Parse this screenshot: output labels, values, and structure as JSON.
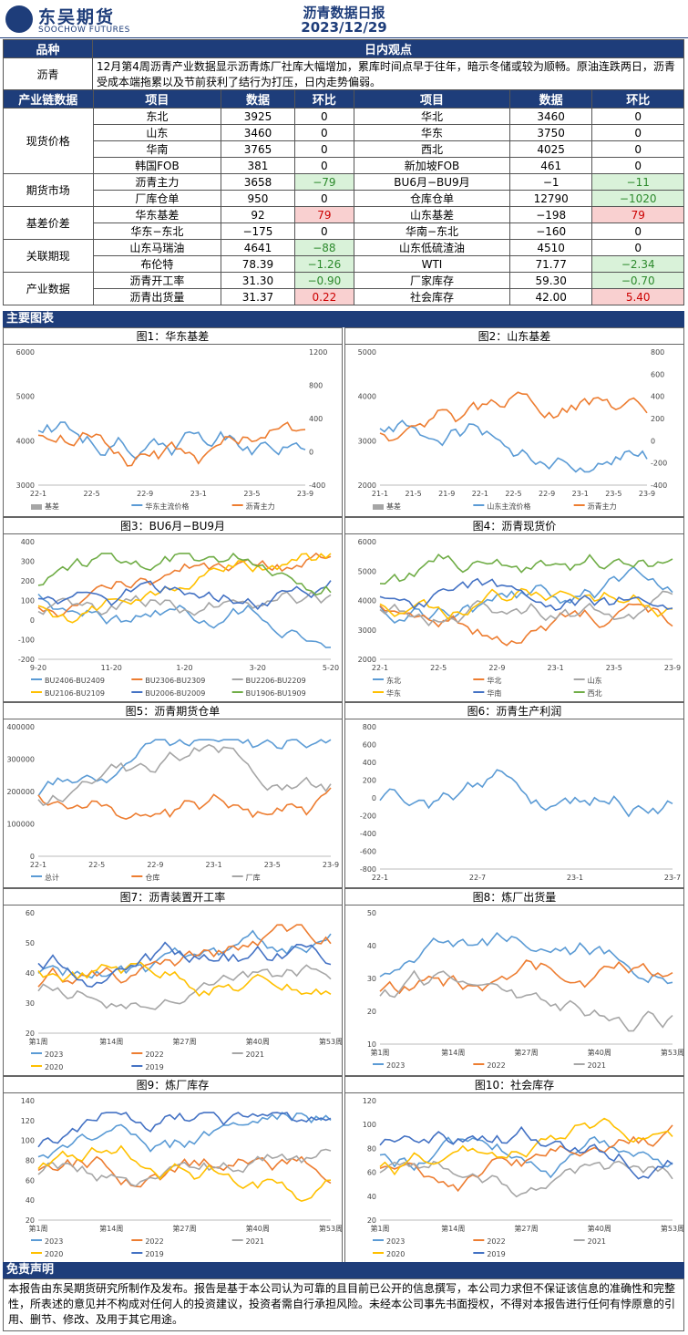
{
  "header": {
    "logo_cn": "东吴期货",
    "logo_en": "SOOCHOW FUTURES",
    "title": "沥青数据日报",
    "date": "2023/12/29"
  },
  "view": {
    "col1": "品种",
    "col2": "日内观点",
    "product": "沥青",
    "text": "12月第4周沥青产业数据显示沥青炼厂社库大幅增加，累库时间点早于往年，暗示冬储或较为顺畅。原油连跌两日，沥青受成本端拖累以及节前获利了结行为打压，日内走势偏弱。"
  },
  "table": {
    "headers": [
      "产业链数据",
      "项目",
      "数据",
      "环比",
      "项目",
      "数据",
      "环比"
    ],
    "groups": [
      {
        "name": "现货价格",
        "rows": [
          [
            "东北",
            "3925",
            "0",
            "华北",
            "3460",
            "0"
          ],
          [
            "山东",
            "3460",
            "0",
            "华东",
            "3750",
            "0"
          ],
          [
            "华南",
            "3765",
            "0",
            "西北",
            "4025",
            "0"
          ],
          [
            "韩国FOB",
            "381",
            "0",
            "新加坡FOB",
            "461",
            "0"
          ]
        ]
      },
      {
        "name": "期货市场",
        "rows": [
          [
            "沥青主力",
            "3658",
            "−79",
            "BU6月−BU9月",
            "−1",
            "−11"
          ],
          [
            "厂库仓单",
            "950",
            "0",
            "仓库仓单",
            "12790",
            "−1020"
          ]
        ]
      },
      {
        "name": "基差价差",
        "rows": [
          [
            "华东基差",
            "92",
            "79",
            "山东基差",
            "−198",
            "79"
          ],
          [
            "华东−东北",
            "−175",
            "0",
            "华南−东北",
            "−160",
            "0"
          ]
        ]
      },
      {
        "name": "关联期现",
        "rows": [
          [
            "山东马瑞油",
            "4641",
            "−88",
            "山东低硫渣油",
            "4510",
            "0"
          ],
          [
            "布伦特",
            "78.39",
            "−1.26",
            "WTI",
            "71.77",
            "−2.34"
          ]
        ]
      },
      {
        "name": "产业数据",
        "rows": [
          [
            "沥青开工率",
            "31.30",
            "−0.90",
            "厂家库存",
            "59.30",
            "−0.70"
          ],
          [
            "沥青出货量",
            "31.37",
            "0.22",
            "社会库存",
            "42.00",
            "5.40"
          ]
        ]
      }
    ]
  },
  "section_title": "主要图表",
  "charts": [
    {
      "title": "图1：华东基差",
      "yl": [
        "6000",
        "5000",
        "4000",
        "3000"
      ],
      "yr": [
        "1200",
        "800",
        "400",
        "0",
        "-400"
      ],
      "x": [
        "22-1",
        "22-5",
        "22-9",
        "23-1",
        "23-5",
        "23-9"
      ],
      "legend": [
        "基差",
        "华东主流价格",
        "沥青主力"
      ],
      "colors": [
        "#a6a6a6",
        "#5b9bd5",
        "#ed7d31"
      ]
    },
    {
      "title": "图2：山东基差",
      "yl": [
        "5000",
        "4000",
        "3000",
        "2000"
      ],
      "yr": [
        "800",
        "600",
        "400",
        "200",
        "0",
        "-200",
        "-400"
      ],
      "x": [
        "21-1",
        "21-5",
        "21-9",
        "22-1",
        "22-5",
        "22-9",
        "23-1",
        "23-5",
        "23-9"
      ],
      "legend": [
        "基差",
        "山东主流价格",
        "沥青主力"
      ],
      "colors": [
        "#a6a6a6",
        "#5b9bd5",
        "#ed7d31"
      ]
    },
    {
      "title": "图3：BU6月−BU9月",
      "yl": [
        "400",
        "300",
        "200",
        "100",
        "0",
        "-100",
        "-200"
      ],
      "x": [
        "9-20",
        "11-20",
        "1-20",
        "3-20",
        "5-20"
      ],
      "legend": [
        "BU2406-BU2409",
        "BU2306-BU2309",
        "BU2206-BU2209",
        "BU2106-BU2109",
        "BU2006-BU2009",
        "BU1906-BU1909"
      ],
      "colors": [
        "#5b9bd5",
        "#ed7d31",
        "#a6a6a6",
        "#ffc000",
        "#4472c4",
        "#70ad47"
      ]
    },
    {
      "title": "图4：沥青现货价",
      "yl": [
        "6000",
        "5000",
        "4000",
        "3000",
        "2000"
      ],
      "x": [
        "22-1",
        "22-5",
        "22-9",
        "23-1",
        "23-5",
        "23-9"
      ],
      "legend": [
        "东北",
        "华北",
        "山东",
        "华东",
        "华南",
        "西北"
      ],
      "colors": [
        "#5b9bd5",
        "#ed7d31",
        "#a6a6a6",
        "#ffc000",
        "#4472c4",
        "#70ad47"
      ]
    },
    {
      "title": "图5：沥青期货仓单",
      "yl": [
        "400000",
        "300000",
        "200000",
        "100000",
        "0"
      ],
      "x": [
        "22-1",
        "22-5",
        "22-9",
        "23-1",
        "23-5",
        "23-9"
      ],
      "legend": [
        "总计",
        "仓库",
        "厂库"
      ],
      "colors": [
        "#5b9bd5",
        "#ed7d31",
        "#a6a6a6"
      ]
    },
    {
      "title": "图6：沥青生产利润",
      "yl": [
        "800",
        "600",
        "400",
        "200",
        "0",
        "-200",
        "-400",
        "-600",
        "-800"
      ],
      "x": [
        "22-1",
        "22-7",
        "23-1",
        "23-7"
      ],
      "legend": [],
      "colors": [
        "#5b9bd5"
      ]
    },
    {
      "title": "图7：沥青装置开工率",
      "yl": [
        "60",
        "50",
        "40",
        "30",
        "20"
      ],
      "x": [
        "第1周",
        "第14周",
        "第27周",
        "第40周",
        "第53周"
      ],
      "legend": [
        "2023",
        "2022",
        "2021",
        "2020",
        "2019"
      ],
      "colors": [
        "#5b9bd5",
        "#ed7d31",
        "#a6a6a6",
        "#ffc000",
        "#4472c4"
      ]
    },
    {
      "title": "图8：炼厂出货量",
      "yl": [
        "50",
        "40",
        "30",
        "20",
        "10"
      ],
      "x": [
        "第1周",
        "第14周",
        "第27周",
        "第40周",
        "第53周"
      ],
      "legend": [
        "2023",
        "2022",
        "2021"
      ],
      "colors": [
        "#5b9bd5",
        "#ed7d31",
        "#a6a6a6"
      ]
    },
    {
      "title": "图9：炼厂库存",
      "yl": [
        "140",
        "120",
        "100",
        "80",
        "60",
        "40",
        "20"
      ],
      "x": [
        "第1周",
        "第14周",
        "第27周",
        "第40周",
        "第53周"
      ],
      "legend": [
        "2023",
        "2022",
        "2021",
        "2020",
        "2019"
      ],
      "colors": [
        "#5b9bd5",
        "#ed7d31",
        "#a6a6a6",
        "#ffc000",
        "#4472c4"
      ]
    },
    {
      "title": "图10：社会库存",
      "yl": [
        "120",
        "100",
        "80",
        "60",
        "40",
        "20"
      ],
      "x": [
        "第1周",
        "第14周",
        "第27周",
        "第40周",
        "第53周"
      ],
      "legend": [
        "2023",
        "2022",
        "2021",
        "2020",
        "2019"
      ],
      "colors": [
        "#5b9bd5",
        "#ed7d31",
        "#a6a6a6",
        "#ffc000",
        "#4472c4"
      ]
    }
  ],
  "disclaimer": {
    "title": "免责声明",
    "text": "本报告由东吴期货研究所制作及发布。报告是基于本公司认为可靠的且目前已公开的信息撰写，本公司力求但不保证该信息的准确性和完整性，所表述的意见并不构成对任何人的投资建议，投资者需自行承担风险。未经本公司事先书面授权，不得对本报告进行任何有悖原意的引用、删节、修改、及用于其它用途。"
  }
}
